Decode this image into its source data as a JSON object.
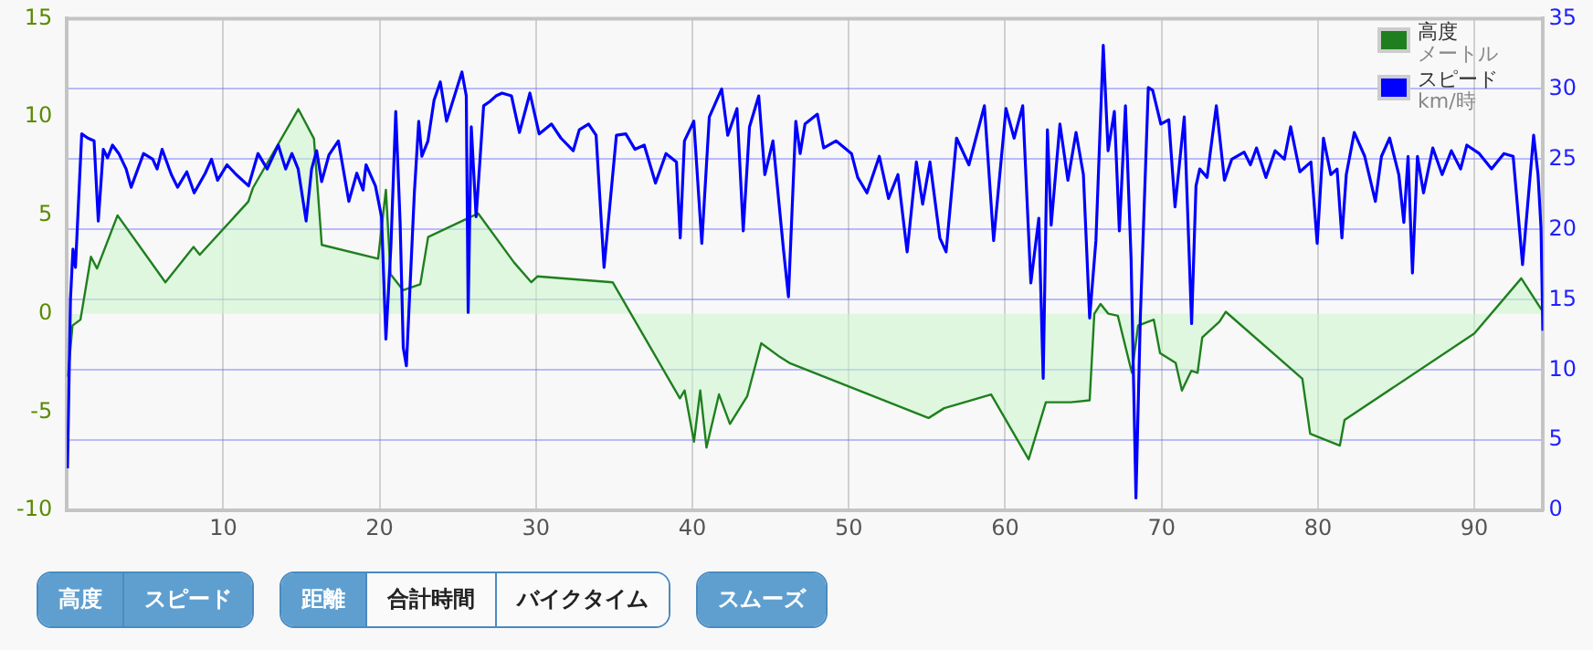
{
  "chart_data": {
    "type": "line",
    "xlim": [
      0,
      94.4
    ],
    "xticks": [
      10,
      20,
      30,
      40,
      50,
      60,
      70,
      80,
      90
    ],
    "ylim": [
      -10,
      15
    ],
    "yticks": [
      -10,
      -5,
      0,
      5,
      10,
      15
    ],
    "y2lim": [
      0,
      35
    ],
    "y2ticks": [
      0,
      5,
      10,
      15,
      20,
      25,
      30,
      35
    ],
    "grid": true,
    "legend": "top right",
    "marker": "none",
    "annotations": [
      "高度",
      "スピード",
      "距離",
      "合計時間",
      "バイクタイム",
      "スムーズ",
      "メートル",
      "km/時"
    ],
    "series": [
      {
        "name": "高度",
        "type": "area",
        "color": "#1f7f1f",
        "x": [
          0.07,
          0.36,
          0.87,
          1.54,
          1.93,
          3.24,
          6.3,
          8.1,
          8.5,
          11.6,
          11.9,
          14.8,
          15.8,
          16.3,
          19.9,
          20.4,
          20.7,
          21.5,
          22.6,
          23.1,
          26.3,
          28.6,
          29.7,
          30.1,
          34.9,
          39.2,
          39.5,
          40.1,
          40.5,
          40.9,
          41.7,
          42.4,
          43.5,
          44.4,
          45.6,
          46.2,
          55.1,
          56.1,
          59.1,
          61.5,
          62.6,
          64.2,
          65.4,
          65.7,
          66.1,
          66.6,
          67.2,
          68.1,
          68.5,
          69.5,
          69.9,
          70.9,
          71.3,
          71.9,
          72.3,
          72.6,
          73.7,
          74.1,
          79.0,
          79.5,
          81.4,
          81.7,
          90.0,
          93.0,
          94.3
        ],
        "values": [
          -3.2,
          -0.6,
          -0.3,
          2.9,
          2.3,
          5.0,
          1.6,
          3.4,
          3.0,
          5.7,
          6.4,
          10.4,
          8.9,
          3.5,
          2.8,
          6.3,
          2.0,
          1.2,
          1.5,
          3.9,
          5.1,
          2.6,
          1.6,
          1.9,
          1.6,
          -4.3,
          -3.9,
          -6.5,
          -3.9,
          -6.8,
          -4.1,
          -5.6,
          -4.2,
          -1.5,
          -2.2,
          -2.5,
          -5.3,
          -4.8,
          -4.1,
          -7.4,
          -4.5,
          -4.5,
          -4.4,
          0.0,
          0.5,
          0.0,
          -0.1,
          -3.0,
          -0.6,
          -0.3,
          -2.0,
          -2.5,
          -3.9,
          -2.9,
          -3.0,
          -1.2,
          -0.4,
          0.1,
          -3.3,
          -6.1,
          -6.7,
          -5.4,
          -1.0,
          1.8,
          0.2
        ]
      },
      {
        "name": "スピード",
        "type": "line",
        "axis": "y2",
        "color": "#0000ff",
        "x": [
          0.04,
          0.23,
          0.39,
          0.55,
          0.95,
          1.34,
          1.74,
          2.01,
          2.33,
          2.6,
          2.92,
          3.32,
          3.79,
          4.11,
          4.9,
          5.49,
          5.77,
          6.09,
          6.68,
          7.08,
          7.67,
          8.14,
          8.85,
          9.25,
          9.64,
          10.24,
          10.83,
          11.62,
          12.22,
          12.81,
          13.52,
          13.99,
          14.39,
          14.79,
          15.3,
          15.65,
          15.97,
          16.29,
          16.76,
          17.36,
          18.03,
          18.54,
          18.94,
          19.13,
          19.73,
          20.12,
          20.4,
          20.72,
          21.03,
          21.31,
          21.51,
          21.71,
          22.22,
          22.5,
          22.7,
          23.09,
          23.48,
          23.88,
          24.28,
          25.26,
          25.54,
          25.66,
          25.86,
          26.17,
          26.65,
          27.04,
          27.44,
          27.83,
          28.43,
          28.94,
          29.61,
          30.2,
          30.99,
          31.59,
          32.38,
          32.77,
          33.36,
          33.84,
          34.35,
          35.14,
          35.74,
          36.33,
          36.92,
          37.64,
          38.31,
          38.98,
          39.22,
          39.49,
          40.09,
          40.6,
          41.08,
          41.87,
          42.26,
          42.85,
          43.25,
          43.65,
          44.24,
          44.63,
          45.15,
          45.82,
          46.14,
          46.61,
          46.89,
          47.2,
          47.99,
          48.39,
          49.18,
          50.17,
          50.57,
          51.16,
          51.95,
          52.54,
          53.14,
          53.73,
          54.32,
          54.72,
          55.19,
          55.82,
          56.22,
          56.89,
          57.68,
          58.67,
          59.26,
          60.05,
          60.57,
          61.12,
          61.64,
          62.15,
          62.43,
          62.7,
          62.94,
          63.5,
          64.01,
          64.53,
          65.0,
          65.4,
          65.8,
          66.27,
          66.58,
          66.98,
          67.3,
          67.69,
          68.05,
          68.36,
          68.64,
          69.15,
          69.43,
          69.95,
          70.46,
          70.86,
          71.45,
          71.92,
          72.2,
          72.44,
          72.91,
          73.5,
          74.02,
          74.49,
          75.28,
          75.68,
          76.07,
          76.67,
          77.26,
          77.85,
          78.25,
          78.84,
          79.55,
          79.95,
          80.35,
          80.82,
          81.22,
          81.53,
          81.81,
          82.32,
          82.99,
          83.67,
          84.06,
          84.58,
          85.17,
          85.49,
          85.76,
          86.04,
          86.36,
          86.75,
          87.34,
          87.94,
          88.53,
          89.12,
          89.52,
          90.31,
          91.1,
          91.89,
          92.48,
          93.08,
          93.79,
          94.07,
          94.26,
          94.38
        ],
        "values": [
          3.0,
          15.0,
          18.6,
          17.3,
          26.8,
          26.5,
          26.3,
          20.6,
          25.7,
          25.1,
          26.0,
          25.4,
          24.3,
          23.0,
          25.4,
          25.0,
          24.3,
          25.7,
          23.9,
          23.0,
          24.1,
          22.6,
          24.0,
          25.0,
          23.5,
          24.6,
          23.9,
          23.1,
          25.4,
          24.3,
          26.0,
          24.3,
          25.4,
          24.3,
          20.6,
          24.3,
          25.6,
          23.4,
          25.3,
          26.3,
          22.0,
          24.0,
          22.8,
          24.6,
          23.1,
          20.9,
          12.2,
          18.8,
          28.4,
          20.5,
          11.6,
          10.3,
          22.6,
          27.7,
          25.2,
          26.3,
          29.2,
          30.5,
          27.7,
          31.2,
          29.5,
          14.1,
          27.3,
          20.9,
          28.8,
          29.1,
          29.5,
          29.7,
          29.5,
          26.9,
          29.7,
          26.8,
          27.5,
          26.5,
          25.6,
          27.1,
          27.5,
          26.7,
          17.3,
          26.7,
          26.8,
          25.7,
          26.0,
          23.3,
          25.4,
          24.8,
          19.4,
          26.3,
          27.7,
          19.0,
          28.0,
          30.0,
          26.7,
          28.6,
          19.9,
          27.3,
          29.5,
          23.9,
          26.3,
          18.6,
          15.2,
          27.7,
          25.4,
          27.5,
          28.2,
          25.8,
          26.3,
          25.4,
          23.7,
          22.6,
          25.2,
          22.2,
          23.9,
          18.4,
          24.8,
          21.8,
          24.8,
          19.4,
          18.4,
          26.5,
          24.6,
          28.8,
          19.2,
          28.6,
          26.5,
          28.8,
          16.2,
          20.8,
          9.4,
          27.1,
          20.3,
          27.5,
          23.5,
          26.9,
          23.9,
          13.7,
          19.2,
          33.1,
          25.6,
          28.4,
          19.9,
          28.8,
          17.9,
          0.9,
          13.7,
          30.1,
          29.9,
          27.5,
          27.8,
          21.6,
          28.0,
          13.3,
          23.1,
          24.3,
          23.7,
          28.8,
          23.5,
          25.0,
          25.5,
          24.6,
          25.8,
          23.7,
          25.6,
          25.0,
          27.3,
          24.1,
          24.8,
          19.0,
          26.5,
          23.9,
          24.3,
          19.4,
          23.9,
          26.9,
          25.2,
          22.0,
          25.2,
          26.5,
          23.9,
          20.5,
          25.2,
          16.9,
          25.2,
          22.6,
          25.8,
          23.9,
          25.6,
          24.3,
          26.0,
          25.4,
          24.3,
          25.4,
          25.2,
          17.5,
          26.7,
          23.9,
          20.1,
          12.8
        ]
      }
    ]
  }
}
